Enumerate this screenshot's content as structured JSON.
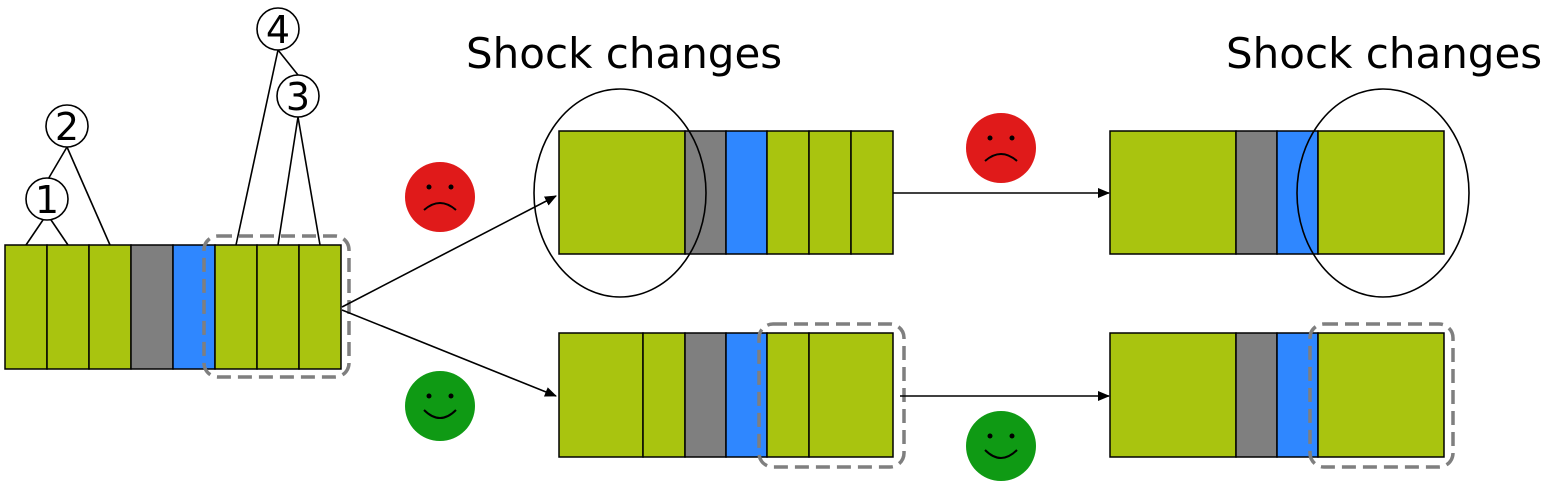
{
  "title_left": "Shock changes",
  "title_right": "Shock changes",
  "node_labels": [
    "1",
    "2",
    "3",
    "4"
  ],
  "colors": {
    "green_cell": "#a9c40f",
    "gray_cell": "#7f7f7f",
    "blue_cell": "#2f87ff",
    "sad_face": "#e01a1a",
    "happy_face": "#0f9a14",
    "dashed_box": "#7f7f7f"
  },
  "faces": [
    {
      "mood": "sad",
      "icon": "sad-face-icon"
    },
    {
      "mood": "sad",
      "icon": "sad-face-icon"
    },
    {
      "mood": "happy",
      "icon": "happy-face-icon"
    },
    {
      "mood": "happy",
      "icon": "happy-face-icon"
    }
  ]
}
